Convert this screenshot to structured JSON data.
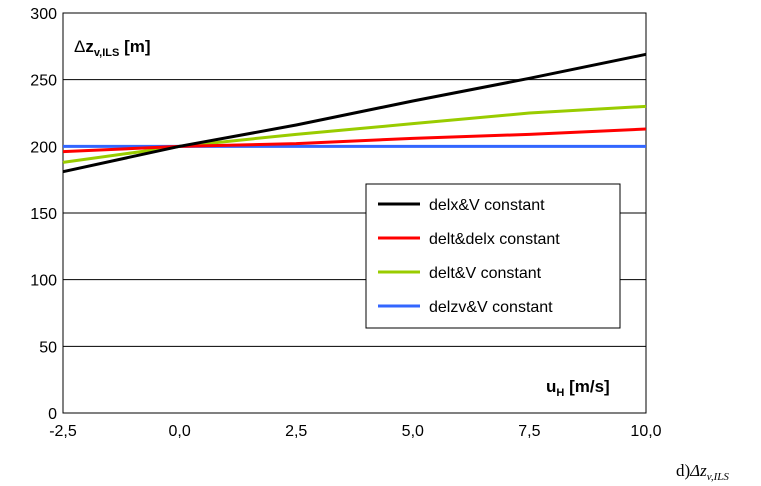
{
  "chart_data": {
    "type": "line",
    "x": [
      -2.5,
      0.0,
      2.5,
      5.0,
      7.5,
      10.0
    ],
    "xlim": [
      -2.5,
      10.0
    ],
    "ylim": [
      0,
      300
    ],
    "xticks": [
      "-2,5",
      "0,0",
      "2,5",
      "5,0",
      "7,5",
      "10,0"
    ],
    "yticks": [
      "0",
      "50",
      "100",
      "150",
      "200",
      "250",
      "300"
    ],
    "ylabel": {
      "delta": "Δ",
      "main": "z",
      "sub": "v,ILS",
      "unit": " [m]"
    },
    "xlabel": {
      "main": "u",
      "sub": "H",
      "unit": " [m/s]"
    },
    "grid": "horizontal",
    "legend_position": "center-right",
    "series": [
      {
        "name": "delx&V constant",
        "color": "#000000",
        "values": [
          181,
          200,
          216,
          234,
          251,
          269
        ]
      },
      {
        "name": "delt&delx constant",
        "color": "#ff0000",
        "values": [
          196,
          200,
          202,
          206,
          209,
          213
        ]
      },
      {
        "name": "delt&V constant",
        "color": "#99cc00",
        "values": [
          188,
          200,
          209,
          217,
          225,
          230
        ]
      },
      {
        "name": "delzv&V constant",
        "color": "#3366ff",
        "values": [
          200,
          200,
          200,
          200,
          200,
          200
        ]
      }
    ]
  },
  "caption": {
    "prefix": "d)",
    "delta": "Δ",
    "main": "z",
    "sub": "v,ILS"
  }
}
